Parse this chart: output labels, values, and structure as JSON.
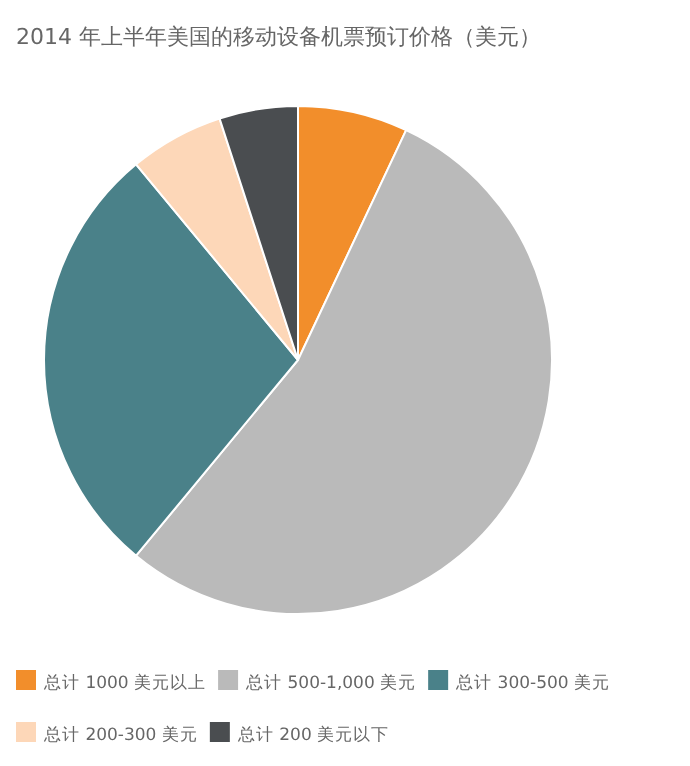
{
  "chart_data": {
    "type": "pie",
    "title": "2014 年上半年美国的移动设备机票预订价格（美元）",
    "categories": [
      "总计 1000 美元以上",
      "总计 500-1,000 美元",
      "总计 300-500 美元",
      "总计 200-300 美元",
      "总计 200 美元以下"
    ],
    "values": [
      7,
      54,
      28,
      6,
      5
    ],
    "colors": [
      "#f28e2b",
      "#bababa",
      "#4a8189",
      "#fdd7b8",
      "#4a4d50"
    ],
    "legend": "bottom"
  }
}
